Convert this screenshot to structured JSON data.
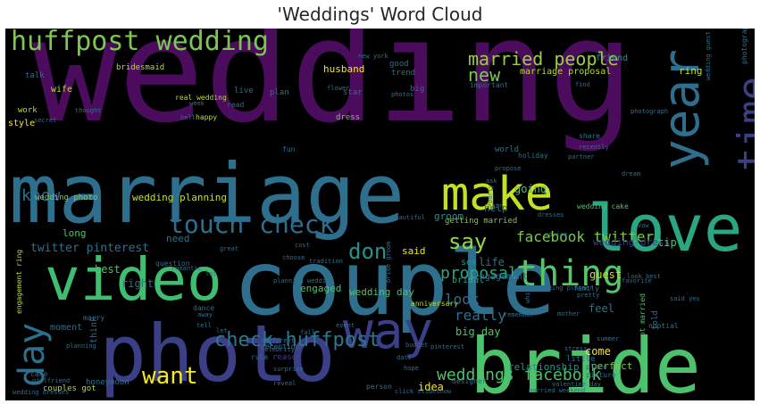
{
  "title": "'Weddings' Word Cloud",
  "colors": {
    "background": "#000000",
    "palette": [
      "#4b0c5e",
      "#3a3f87",
      "#2e6f8e",
      "#22948a",
      "#4cc26c",
      "#b4dd2c",
      "#f6e71f"
    ]
  },
  "words": [
    {
      "text": "wedding",
      "color": "#4b0c5e"
    },
    {
      "text": "marriage",
      "color": "#2e6f8e"
    },
    {
      "text": "couple",
      "color": "#2e6f8e"
    },
    {
      "text": "photo",
      "color": "#3a3f87"
    },
    {
      "text": "bride",
      "color": "#4cc26c"
    },
    {
      "text": "video",
      "color": "#3fbd70"
    },
    {
      "text": "love",
      "color": "#2aa683"
    },
    {
      "text": "year",
      "color": "#2e6f8e"
    },
    {
      "text": "time",
      "color": "#3a3f87"
    },
    {
      "text": "make",
      "color": "#c5e021"
    },
    {
      "text": "huffpost wedding",
      "color": "#7ac94e"
    },
    {
      "text": "way",
      "color": "#3a3f87"
    },
    {
      "text": "day",
      "color": "#2e6f8e"
    },
    {
      "text": "thing",
      "color": "#55c565"
    },
    {
      "text": "touch check",
      "color": "#2e6f8e"
    },
    {
      "text": "married people",
      "color": "#9ccc48"
    },
    {
      "text": "check huffpost",
      "color": "#2a788e"
    },
    {
      "text": "want",
      "color": "#f6e71f"
    },
    {
      "text": "weddings facebook",
      "color": "#4cc26c"
    },
    {
      "text": "facebook twitter",
      "color": "#7ac94e"
    },
    {
      "text": "know",
      "color": "#2e6f8e"
    },
    {
      "text": "say",
      "color": "#8fd744"
    },
    {
      "text": "new",
      "color": "#7ac94e"
    },
    {
      "text": "look",
      "color": "#2e6f8e"
    },
    {
      "text": "really",
      "color": "#2e6f8e"
    },
    {
      "text": "proposal",
      "color": "#2aa683"
    },
    {
      "text": "don",
      "color": "#22948a"
    },
    {
      "text": "twitter pinterest",
      "color": "#2e6f8e"
    },
    {
      "text": "wedding planning",
      "color": "#c5e021"
    },
    {
      "text": "wedding photo",
      "color": "#7ac94e"
    },
    {
      "text": "husband",
      "color": "#f6e71f"
    },
    {
      "text": "bridesmaid",
      "color": "#b4dd2c"
    },
    {
      "text": "marriage proposal",
      "color": "#b4dd2c"
    },
    {
      "text": "friend",
      "color": "#22948a"
    },
    {
      "text": "ring",
      "color": "#c5e021"
    },
    {
      "text": "wife",
      "color": "#b4dd2c"
    },
    {
      "text": "style",
      "color": "#f6e71f"
    },
    {
      "text": "groom",
      "color": "#22948a"
    },
    {
      "text": "going",
      "color": "#4cc26c"
    },
    {
      "text": "help",
      "color": "#2e6f8e"
    },
    {
      "text": "guest",
      "color": "#c5e021"
    },
    {
      "text": "wedding dress",
      "color": "#3a3f87"
    },
    {
      "text": "tip",
      "color": "#4cc26c"
    },
    {
      "text": "said",
      "color": "#f6e71f"
    },
    {
      "text": "best",
      "color": "#4cc26c"
    },
    {
      "text": "sex",
      "color": "#22948a"
    },
    {
      "text": "life",
      "color": "#2e6f8e"
    },
    {
      "text": "bridal",
      "color": "#2aa683"
    },
    {
      "text": "engagement",
      "color": "#2e6f8e"
    },
    {
      "text": "engagement ring",
      "color": "#b4dd2c"
    },
    {
      "text": "long",
      "color": "#4cc26c"
    },
    {
      "text": "need",
      "color": "#2e6f8e"
    },
    {
      "text": "right",
      "color": "#2e6f8e"
    },
    {
      "text": "moment",
      "color": "#2e6f8e"
    },
    {
      "text": "engaged",
      "color": "#4cc26c"
    },
    {
      "text": "wedding day",
      "color": "#4cc26c"
    },
    {
      "text": "big day",
      "color": "#4cc26c"
    },
    {
      "text": "feel",
      "color": "#2e6f8e"
    },
    {
      "text": "come",
      "color": "#f6e71f"
    },
    {
      "text": "perfect",
      "color": "#7ac94e"
    },
    {
      "text": "relationship",
      "color": "#22948a"
    },
    {
      "text": "idea",
      "color": "#f6e71f"
    },
    {
      "text": "think",
      "color": "#2e6f8e"
    },
    {
      "text": "couples got",
      "color": "#b4dd2c"
    },
    {
      "text": "honeymoon",
      "color": "#2e6f8e"
    },
    {
      "text": "reason",
      "color": "#3a3f87"
    },
    {
      "text": "good",
      "color": "#2e6f8e"
    },
    {
      "text": "trend",
      "color": "#2e6f8e"
    },
    {
      "text": "big",
      "color": "#2e6f8e"
    },
    {
      "text": "star",
      "color": "#2e6f8e"
    },
    {
      "text": "plan",
      "color": "#2e6f8e"
    },
    {
      "text": "live",
      "color": "#2e6f8e"
    },
    {
      "text": "getting married",
      "color": "#7ac94e"
    },
    {
      "text": "world",
      "color": "#2e6f8e"
    },
    {
      "text": "work",
      "color": "#b4dd2c"
    },
    {
      "text": "talk",
      "color": "#2e6f8e"
    },
    {
      "text": "dress",
      "color": "#7ac94e"
    },
    {
      "text": "fun",
      "color": "#2e6f8e"
    },
    {
      "text": "real wedding",
      "color": "#b4dd2c"
    },
    {
      "text": "happy",
      "color": "#b4dd2c"
    },
    {
      "text": "planning",
      "color": "#2e6f8e"
    },
    {
      "text": "marry",
      "color": "#2e6f8e"
    },
    {
      "text": "rule",
      "color": "#2e6f8e"
    },
    {
      "text": "reception",
      "color": "#2e6f8e"
    },
    {
      "text": "little",
      "color": "#2e6f8e"
    },
    {
      "text": "different",
      "color": "#2e6f8e"
    },
    {
      "text": "celebrity",
      "color": "#2e6f8e"
    },
    {
      "text": "important",
      "color": "#2e6f8e"
    },
    {
      "text": "read",
      "color": "#2e6f8e"
    },
    {
      "text": "holiday",
      "color": "#2e6f8e"
    },
    {
      "text": "anniversary",
      "color": "#b4dd2c"
    },
    {
      "text": "wedding cake",
      "color": "#4cc26c"
    },
    {
      "text": "family",
      "color": "#2e6f8e"
    },
    {
      "text": "surprise",
      "color": "#2e6f8e"
    },
    {
      "text": "designer",
      "color": "#2e6f8e"
    },
    {
      "text": "cake",
      "color": "#2e6f8e"
    },
    {
      "text": "girlfriend",
      "color": "#2e6f8e"
    },
    {
      "text": "wedding dresses",
      "color": "#2e6f8e"
    },
    {
      "text": "picture",
      "color": "#2e6f8e"
    },
    {
      "text": "place",
      "color": "#2e6f8e"
    },
    {
      "text": "got married",
      "color": "#4cc26c"
    },
    {
      "text": "mother",
      "color": "#2e6f8e"
    },
    {
      "text": "question",
      "color": "#2e6f8e"
    },
    {
      "text": "told",
      "color": "#2e6f8e"
    },
    {
      "text": "dance",
      "color": "#2e6f8e"
    },
    {
      "text": "away",
      "color": "#2e6f8e"
    },
    {
      "text": "partner",
      "color": "#2e6f8e"
    },
    {
      "text": "share",
      "color": "#2e6f8e"
    },
    {
      "text": "photographer",
      "color": "#2e6f8e"
    },
    {
      "text": "thought",
      "color": "#2e6f8e"
    },
    {
      "text": "secret",
      "color": "#2e6f8e"
    },
    {
      "text": "new york",
      "color": "#2e6f8e"
    },
    {
      "text": "romantic",
      "color": "#2e6f8e"
    },
    {
      "text": "tradition",
      "color": "#2e6f8e"
    },
    {
      "text": "advice",
      "color": "#2e6f8e"
    },
    {
      "text": "nuptial",
      "color": "#2e6f8e"
    },
    {
      "text": "stress",
      "color": "#2e6f8e"
    },
    {
      "text": "person",
      "color": "#2e6f8e"
    },
    {
      "text": "reveal",
      "color": "#2e6f8e"
    },
    {
      "text": "married weekend",
      "color": "#2e6f8e"
    },
    {
      "text": "click slideshow",
      "color": "#2e6f8e"
    },
    {
      "text": "look best",
      "color": "#2e6f8e"
    },
    {
      "text": "find",
      "color": "#2e6f8e"
    },
    {
      "text": "hair",
      "color": "#2e6f8e"
    },
    {
      "text": "photograph",
      "color": "#2e6f8e"
    },
    {
      "text": "propose",
      "color": "#2e6f8e"
    },
    {
      "text": "dream",
      "color": "#2e6f8e"
    },
    {
      "text": "favorite",
      "color": "#2e6f8e"
    },
    {
      "text": "pretty",
      "color": "#2e6f8e"
    },
    {
      "text": "summer",
      "color": "#2e6f8e"
    },
    {
      "text": "remember",
      "color": "#2e6f8e"
    },
    {
      "text": "ask",
      "color": "#2e6f8e"
    },
    {
      "text": "recently",
      "color": "#2e6f8e"
    },
    {
      "text": "dresses",
      "color": "#2e6f8e"
    },
    {
      "text": "beautiful",
      "color": "#2e6f8e"
    },
    {
      "text": "great",
      "color": "#2e6f8e"
    },
    {
      "text": "cost",
      "color": "#2e6f8e"
    },
    {
      "text": "choose",
      "color": "#2e6f8e"
    },
    {
      "text": "planning wedding",
      "color": "#2e6f8e"
    },
    {
      "text": "wedding planner",
      "color": "#2e6f8e"
    },
    {
      "text": "wedding guest",
      "color": "#2e6f8e"
    },
    {
      "text": "said yes",
      "color": "#2e6f8e"
    },
    {
      "text": "valentine day",
      "color": "#2e6f8e"
    },
    {
      "text": "party",
      "color": "#2e6f8e"
    },
    {
      "text": "fall",
      "color": "#2e6f8e"
    },
    {
      "text": "event",
      "color": "#2e6f8e"
    },
    {
      "text": "bride groom",
      "color": "#2e6f8e"
    },
    {
      "text": "let",
      "color": "#2e6f8e"
    },
    {
      "text": "tell",
      "color": "#2e6f8e"
    },
    {
      "text": "lot",
      "color": "#2e6f8e"
    },
    {
      "text": "week",
      "color": "#2e6f8e"
    },
    {
      "text": "bell",
      "color": "#2e6f8e"
    },
    {
      "text": "flower",
      "color": "#2e6f8e"
    },
    {
      "text": "photos",
      "color": "#2e6f8e"
    },
    {
      "text": "vow",
      "color": "#2e6f8e"
    },
    {
      "text": "white",
      "color": "#2e6f8e"
    },
    {
      "text": "budget",
      "color": "#2e6f8e"
    },
    {
      "text": "date",
      "color": "#2e6f8e"
    },
    {
      "text": "hope",
      "color": "#2e6f8e"
    },
    {
      "text": "pinterest",
      "color": "#2e6f8e"
    }
  ]
}
